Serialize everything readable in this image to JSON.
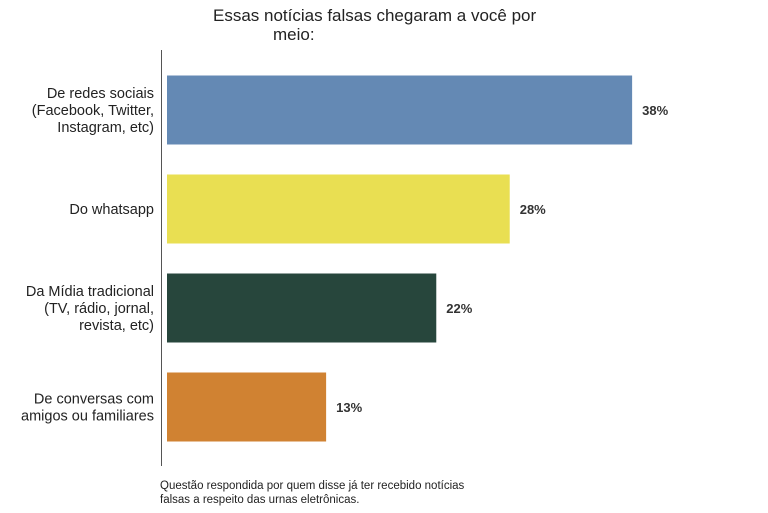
{
  "chart_data": {
    "type": "bar",
    "orientation": "horizontal",
    "title": "Essas notícias falsas chegaram a você por meio:",
    "title_lines": [
      "Essas notícias falsas chegaram a você por",
      "meio:"
    ],
    "categories": [
      "De redes sociais (Facebook, Twitter, Instagram, etc)",
      "Do whatsapp",
      "Da Mídia tradicional (TV, rádio, jornal, revista, etc)",
      "De conversas com amigos ou familiares"
    ],
    "category_lines": [
      [
        "De redes sociais",
        "(Facebook, Twitter,",
        "Instagram, etc)"
      ],
      [
        "Do whatsapp"
      ],
      [
        "Da Mídia tradicional",
        "(TV, rádio, jornal,",
        "revista, etc)"
      ],
      [
        "De conversas com",
        "amigos ou familiares"
      ]
    ],
    "values": [
      38,
      28,
      22,
      13
    ],
    "value_labels": [
      "38%",
      "28%",
      "22%",
      "13%"
    ],
    "colors": [
      "#6489b4",
      "#e9df52",
      "#27463c",
      "#d08232"
    ],
    "xlim": [
      0,
      46
    ],
    "grid": false,
    "legend": "none",
    "note": "Questão respondida por quem disse já ter recebido notícias falsas a respeito das urnas eletrônicas.",
    "note_lines": [
      "Questão respondida por quem disse já ter recebido notícias",
      "falsas a respeito das urnas eletrônicas."
    ]
  }
}
